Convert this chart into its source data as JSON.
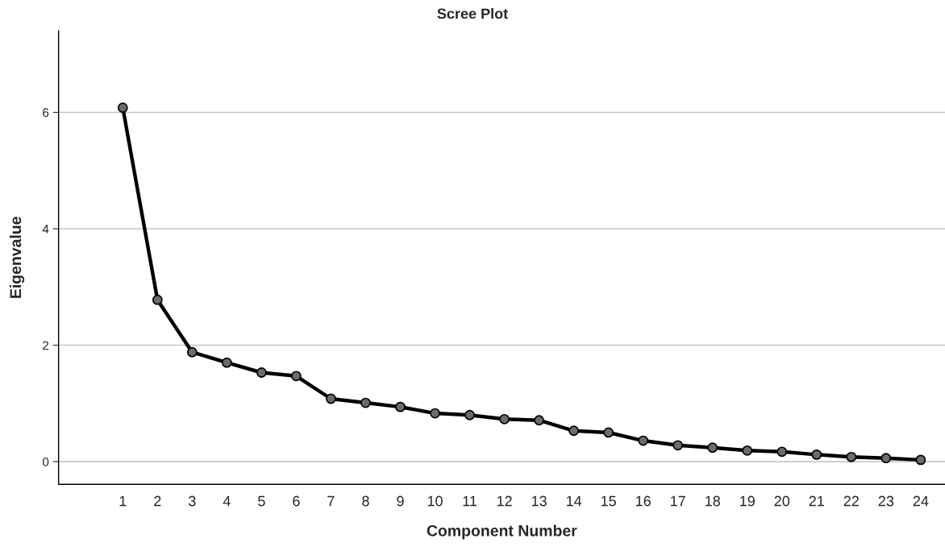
{
  "chart_data": {
    "type": "line",
    "title": "Scree Plot",
    "xlabel": "Component Number",
    "ylabel": "Eigenvalue",
    "categories": [
      "1",
      "2",
      "3",
      "4",
      "5",
      "6",
      "7",
      "8",
      "9",
      "10",
      "11",
      "12",
      "13",
      "14",
      "15",
      "16",
      "17",
      "18",
      "19",
      "20",
      "21",
      "22",
      "23",
      "24"
    ],
    "series": [
      {
        "color": "#000000",
        "values": [
          6.08,
          2.78,
          1.88,
          1.7,
          1.53,
          1.47,
          1.08,
          1.01,
          0.94,
          0.83,
          0.8,
          0.73,
          0.71,
          0.53,
          0.5,
          0.36,
          0.28,
          0.24,
          0.19,
          0.17,
          0.12,
          0.08,
          0.06,
          0.03
        ]
      }
    ],
    "ylim": [
      -0.39,
      7.4
    ],
    "yticks": [
      0,
      2,
      4,
      6
    ],
    "grid": "y",
    "marker": "circle",
    "line_style": "solid",
    "legend": false
  }
}
